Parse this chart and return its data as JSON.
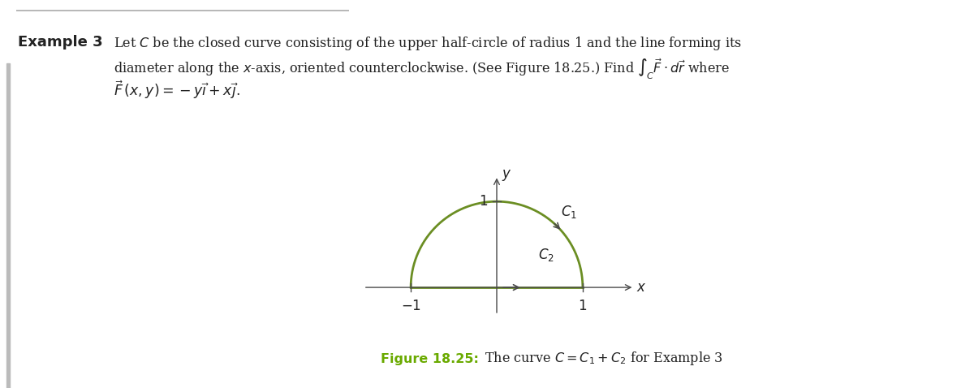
{
  "fig_width": 12.0,
  "fig_height": 4.78,
  "dpi": 100,
  "background_color": "#ffffff",
  "curve_color": "#6b8e23",
  "axis_color": "#4a4a4a",
  "text_color": "#222222",
  "figure_label_color": "#6aaa00",
  "top_line_color": "#aaaaaa",
  "c1_label": "$C_1$",
  "c2_label": "$C_2$",
  "x_label": "$x$",
  "y_label": "$y$",
  "tick_neg1": "$-1$",
  "tick_1_x": "$1$",
  "tick_1_y": "$1$"
}
